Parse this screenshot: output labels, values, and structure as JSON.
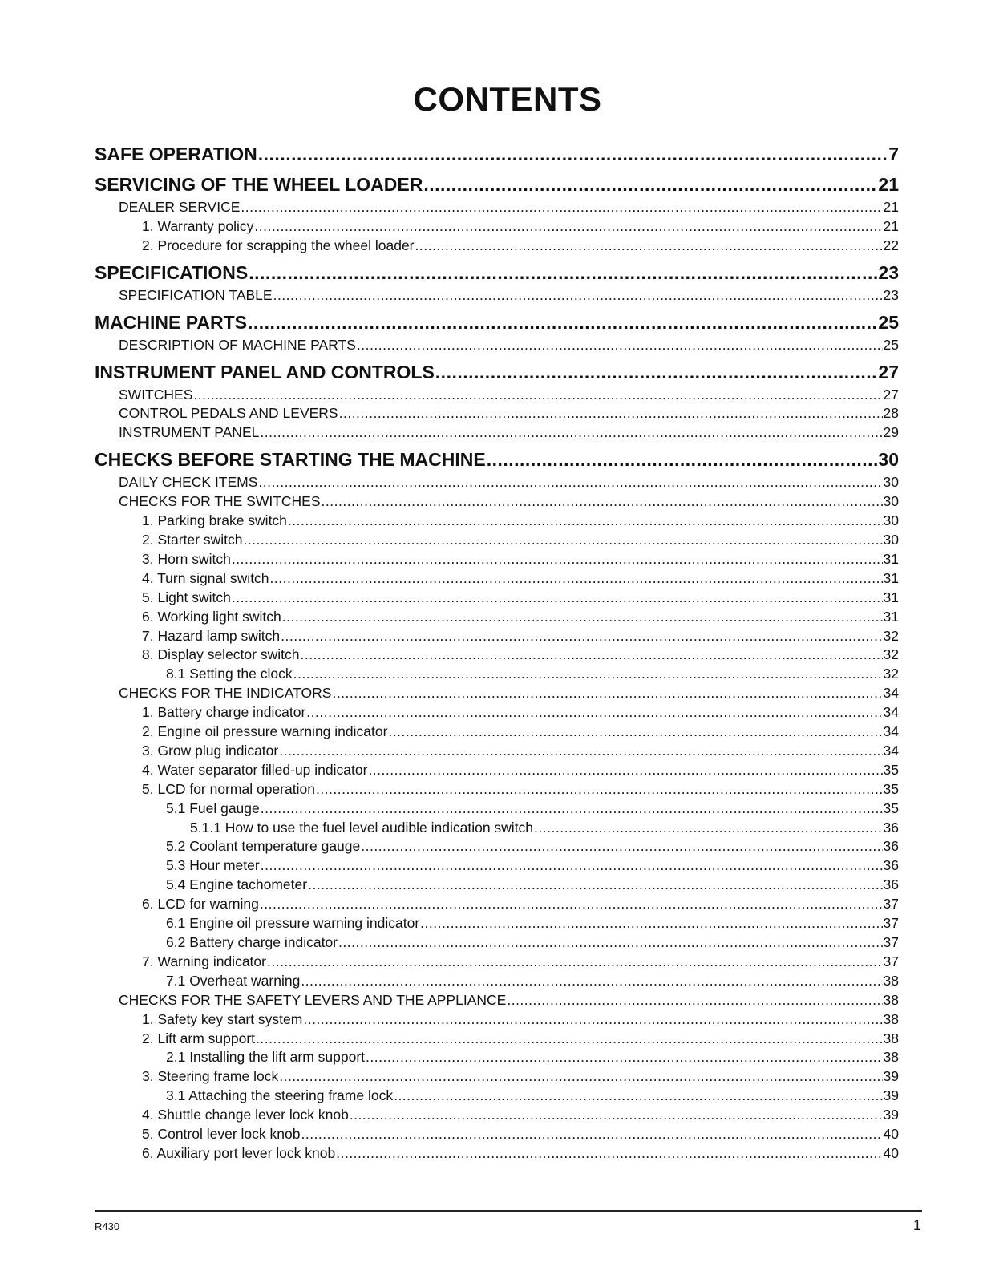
{
  "title": "CONTENTS",
  "entries": [
    {
      "level": 0,
      "title": "SAFE OPERATION",
      "page": "7"
    },
    {
      "level": 0,
      "title": "SERVICING OF THE WHEEL LOADER ",
      "page": "21"
    },
    {
      "level": 1,
      "title": "DEALER SERVICE",
      "page": "21"
    },
    {
      "level": 2,
      "title": "1. Warranty policy ",
      "page": "21"
    },
    {
      "level": 2,
      "title": "2. Procedure for scrapping the wheel loader",
      "page": "22"
    },
    {
      "level": 0,
      "title": "SPECIFICATIONS",
      "page": "23"
    },
    {
      "level": 1,
      "title": "SPECIFICATION TABLE",
      "page": "23"
    },
    {
      "level": 0,
      "title": "MACHINE PARTS",
      "page": "25"
    },
    {
      "level": 1,
      "title": "DESCRIPTION OF MACHINE PARTS ",
      "page": "25"
    },
    {
      "level": 0,
      "title": "INSTRUMENT PANEL AND CONTROLS",
      "page": "27"
    },
    {
      "level": 1,
      "title": "SWITCHES ",
      "page": "27"
    },
    {
      "level": 1,
      "title": "CONTROL PEDALS AND LEVERS ",
      "page": "28"
    },
    {
      "level": 1,
      "title": "INSTRUMENT PANEL",
      "page": "29"
    },
    {
      "level": 0,
      "title": "CHECKS BEFORE STARTING THE MACHINE ",
      "page": "30"
    },
    {
      "level": 1,
      "title": "DAILY CHECK ITEMS ",
      "page": "30"
    },
    {
      "level": 1,
      "title": "CHECKS FOR THE SWITCHES ",
      "page": "30"
    },
    {
      "level": 2,
      "title": "1. Parking brake switch ",
      "page": "30"
    },
    {
      "level": 2,
      "title": "2. Starter switch",
      "page": "30"
    },
    {
      "level": 2,
      "title": "3. Horn switch",
      "page": "31"
    },
    {
      "level": 2,
      "title": "4. Turn signal switch ",
      "page": "31"
    },
    {
      "level": 2,
      "title": "5. Light switch",
      "page": "31"
    },
    {
      "level": 2,
      "title": "6. Working light switch",
      "page": "31"
    },
    {
      "level": 2,
      "title": "7. Hazard lamp switch ",
      "page": "32"
    },
    {
      "level": 2,
      "title": "8. Display selector switch ",
      "page": "32"
    },
    {
      "level": 3,
      "title": "8.1 Setting the clock",
      "page": "32"
    },
    {
      "level": 1,
      "title": "CHECKS FOR THE INDICATORS ",
      "page": "34"
    },
    {
      "level": 2,
      "title": "1. Battery charge indicator",
      "page": "34"
    },
    {
      "level": 2,
      "title": "2. Engine oil pressure warning indicator",
      "page": "34"
    },
    {
      "level": 2,
      "title": "3. Grow plug indicator",
      "page": "34"
    },
    {
      "level": 2,
      "title": "4. Water separator filled-up indicator",
      "page": "35"
    },
    {
      "level": 2,
      "title": "5. LCD for normal operation ",
      "page": "35"
    },
    {
      "level": 3,
      "title": "5.1 Fuel gauge ",
      "page": "35"
    },
    {
      "level": 4,
      "title": "5.1.1 How to use the fuel level audible indication switch",
      "page": "36"
    },
    {
      "level": 3,
      "title": "5.2 Coolant temperature gauge ",
      "page": "36"
    },
    {
      "level": 3,
      "title": "5.3 Hour meter ",
      "page": "36"
    },
    {
      "level": 3,
      "title": "5.4 Engine tachometer",
      "page": "36"
    },
    {
      "level": 2,
      "title": "6. LCD for warning",
      "page": "37"
    },
    {
      "level": 3,
      "title": "6.1 Engine oil pressure warning indicator ",
      "page": "37"
    },
    {
      "level": 3,
      "title": "6.2 Battery charge indicator ",
      "page": "37"
    },
    {
      "level": 2,
      "title": "7. Warning indicator",
      "page": "37"
    },
    {
      "level": 3,
      "title": "7.1 Overheat warning",
      "page": "38"
    },
    {
      "level": 1,
      "title": "CHECKS FOR THE SAFETY LEVERS AND THE APPLIANCE",
      "page": "38"
    },
    {
      "level": 2,
      "title": "1. Safety key start system ",
      "page": "38"
    },
    {
      "level": 2,
      "title": "2. Lift arm support",
      "page": "38"
    },
    {
      "level": 3,
      "title": "2.1 Installing the lift arm support ",
      "page": "38"
    },
    {
      "level": 2,
      "title": "3. Steering frame lock",
      "page": "39"
    },
    {
      "level": 3,
      "title": "3.1 Attaching the steering frame lock",
      "page": "39"
    },
    {
      "level": 2,
      "title": "4. Shuttle change lever lock knob",
      "page": "39"
    },
    {
      "level": 2,
      "title": "5. Control lever lock knob ",
      "page": "40"
    },
    {
      "level": 2,
      "title": "6. Auxiliary port lever lock knob",
      "page": "40"
    }
  ],
  "footer": {
    "doc_code": "R430",
    "page_number": "1"
  }
}
